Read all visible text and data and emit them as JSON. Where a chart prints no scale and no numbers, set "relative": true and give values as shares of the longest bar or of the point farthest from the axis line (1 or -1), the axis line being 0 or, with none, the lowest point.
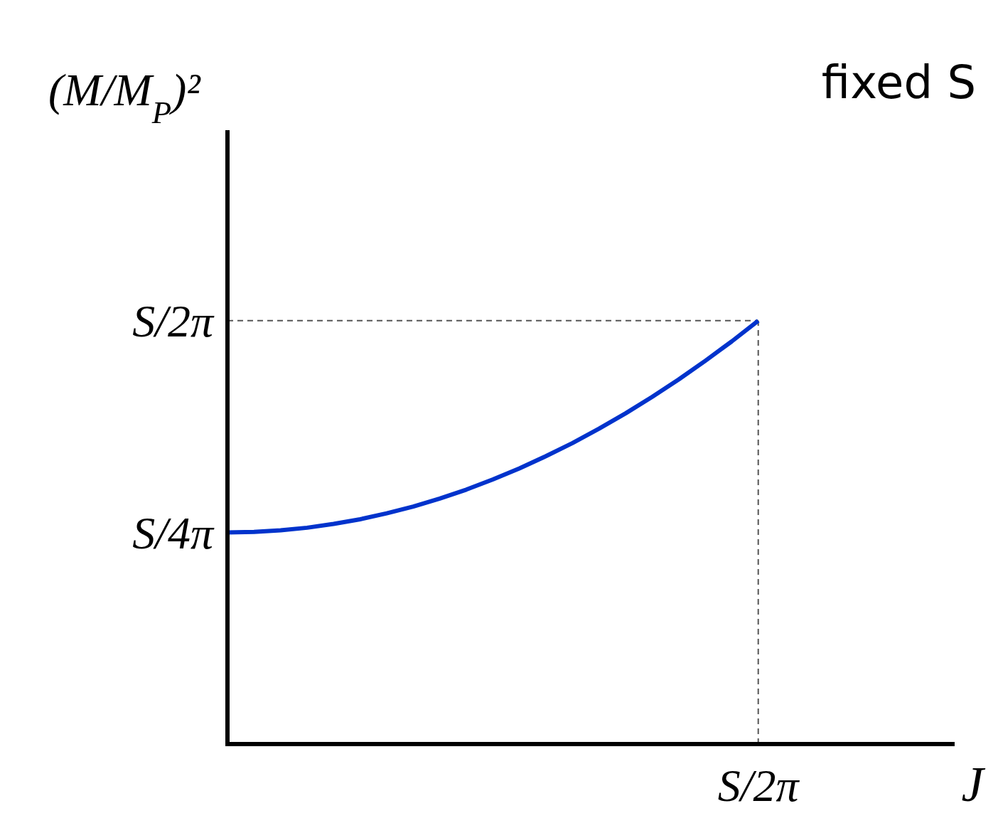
{
  "chart_data": {
    "type": "line",
    "relative": true,
    "xlabel": "J",
    "ylabel": "(M/M$_{P}$)²",
    "categories": [
      null,
      null,
      null,
      null,
      null,
      null,
      null,
      null,
      null,
      null,
      null,
      null,
      null,
      null,
      null,
      null,
      null,
      null,
      null,
      null,
      null
    ],
    "annotations": [
      "fixed S",
      "S/4π"
    ],
    "marker": "none",
    "line_style": "solid",
    "ref_lines": [
      {
        "axis": "y",
        "value": 1,
        "label": "S/2π",
        "color": "#555555",
        "line_style": "dashed"
      },
      {
        "axis": "x",
        "label": "S/2π",
        "color": "#555555",
        "line_style": "dashed"
      }
    ],
    "series": [
      {
        "color": "#0033cc",
        "values": [
          0.5,
          0.501,
          0.505,
          0.511,
          0.52,
          0.531,
          0.545,
          0.561,
          0.58,
          0.601,
          0.625,
          0.651,
          0.68,
          0.711,
          0.745,
          0.781,
          0.82,
          0.861,
          0.905,
          0.951,
          1
        ]
      }
    ]
  }
}
